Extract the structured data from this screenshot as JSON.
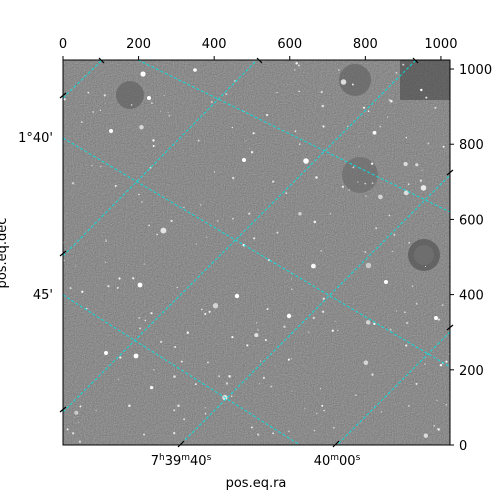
{
  "chart_data": {
    "type": "image",
    "title": "",
    "xlabel": "pos.eq.ra",
    "ylabel": "pos.eq.dec",
    "pixel_axes": {
      "x_range": [
        0,
        1024
      ],
      "y_range": [
        0,
        1024
      ],
      "x_ticks": [
        0,
        200,
        400,
        600,
        800,
        1000
      ],
      "y_ticks": [
        0,
        200,
        400,
        600,
        800,
        1000
      ],
      "x_tick_labels": [
        "0",
        "200",
        "400",
        "600",
        "800",
        "1000"
      ],
      "y_tick_labels": [
        "0",
        "200",
        "400",
        "600",
        "800",
        "1000"
      ]
    },
    "world_ticks": {
      "ra_labels": [
        {
          "h": "7",
          "m": "39",
          "s": "40"
        },
        {
          "h": "",
          "m": "40",
          "s": "00"
        }
      ],
      "dec_labels": [
        "1°40'",
        "45'"
      ]
    },
    "grid": true,
    "grid_color": "#00e5e5",
    "image_colormap": "gray"
  }
}
